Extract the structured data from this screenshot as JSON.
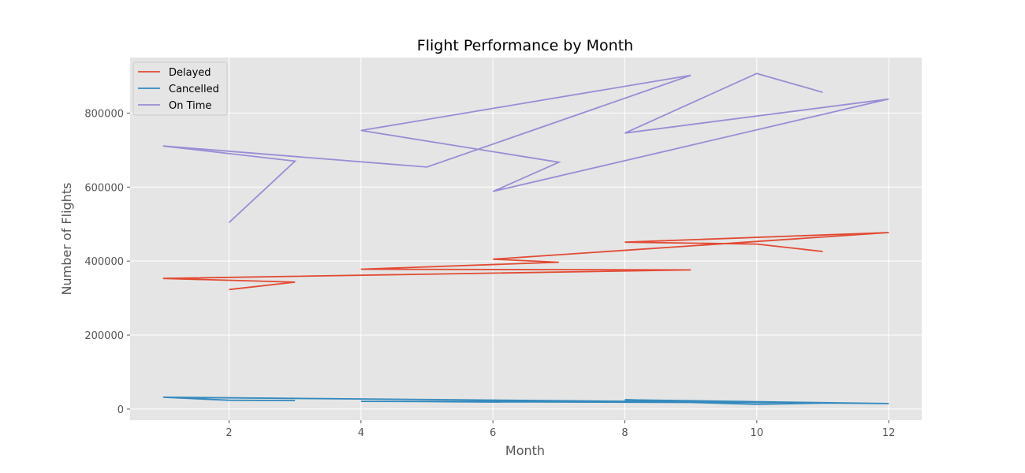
{
  "chart_data": {
    "type": "line",
    "title": "Flight Performance by Month",
    "xlabel": "Month",
    "ylabel": "Number of Flights",
    "xlim": [
      0.5,
      12.5
    ],
    "ylim": [
      -30000,
      950000
    ],
    "xticks": [
      2,
      4,
      6,
      8,
      10,
      12
    ],
    "yticks": [
      0,
      200000,
      400000,
      600000,
      800000
    ],
    "grid": true,
    "legend_position": "top-left",
    "series": [
      {
        "name": "Delayed",
        "color": "#e24a33",
        "x": [
          2,
          3,
          1,
          9,
          4,
          7,
          6,
          12,
          8,
          10,
          11
        ],
        "y": [
          323000,
          343000,
          353000,
          376000,
          378000,
          397000,
          405000,
          477000,
          451000,
          446000,
          426000
        ]
      },
      {
        "name": "Cancelled",
        "color": "#348abd",
        "x": [
          3,
          2,
          1,
          12,
          8,
          11,
          10,
          9,
          4,
          7,
          6,
          5
        ],
        "y": [
          23000,
          24000,
          32000,
          15000,
          25000,
          16000,
          13000,
          18000,
          21000,
          21000,
          19000,
          20000
        ]
      },
      {
        "name": "On Time",
        "color": "#988ed5",
        "x": [
          2,
          3,
          1,
          5,
          9,
          4,
          7,
          6,
          12,
          8,
          10,
          11
        ],
        "y": [
          504000,
          670000,
          711000,
          654000,
          902000,
          753000,
          667000,
          588000,
          838000,
          746000,
          907000,
          856000
        ]
      }
    ]
  }
}
